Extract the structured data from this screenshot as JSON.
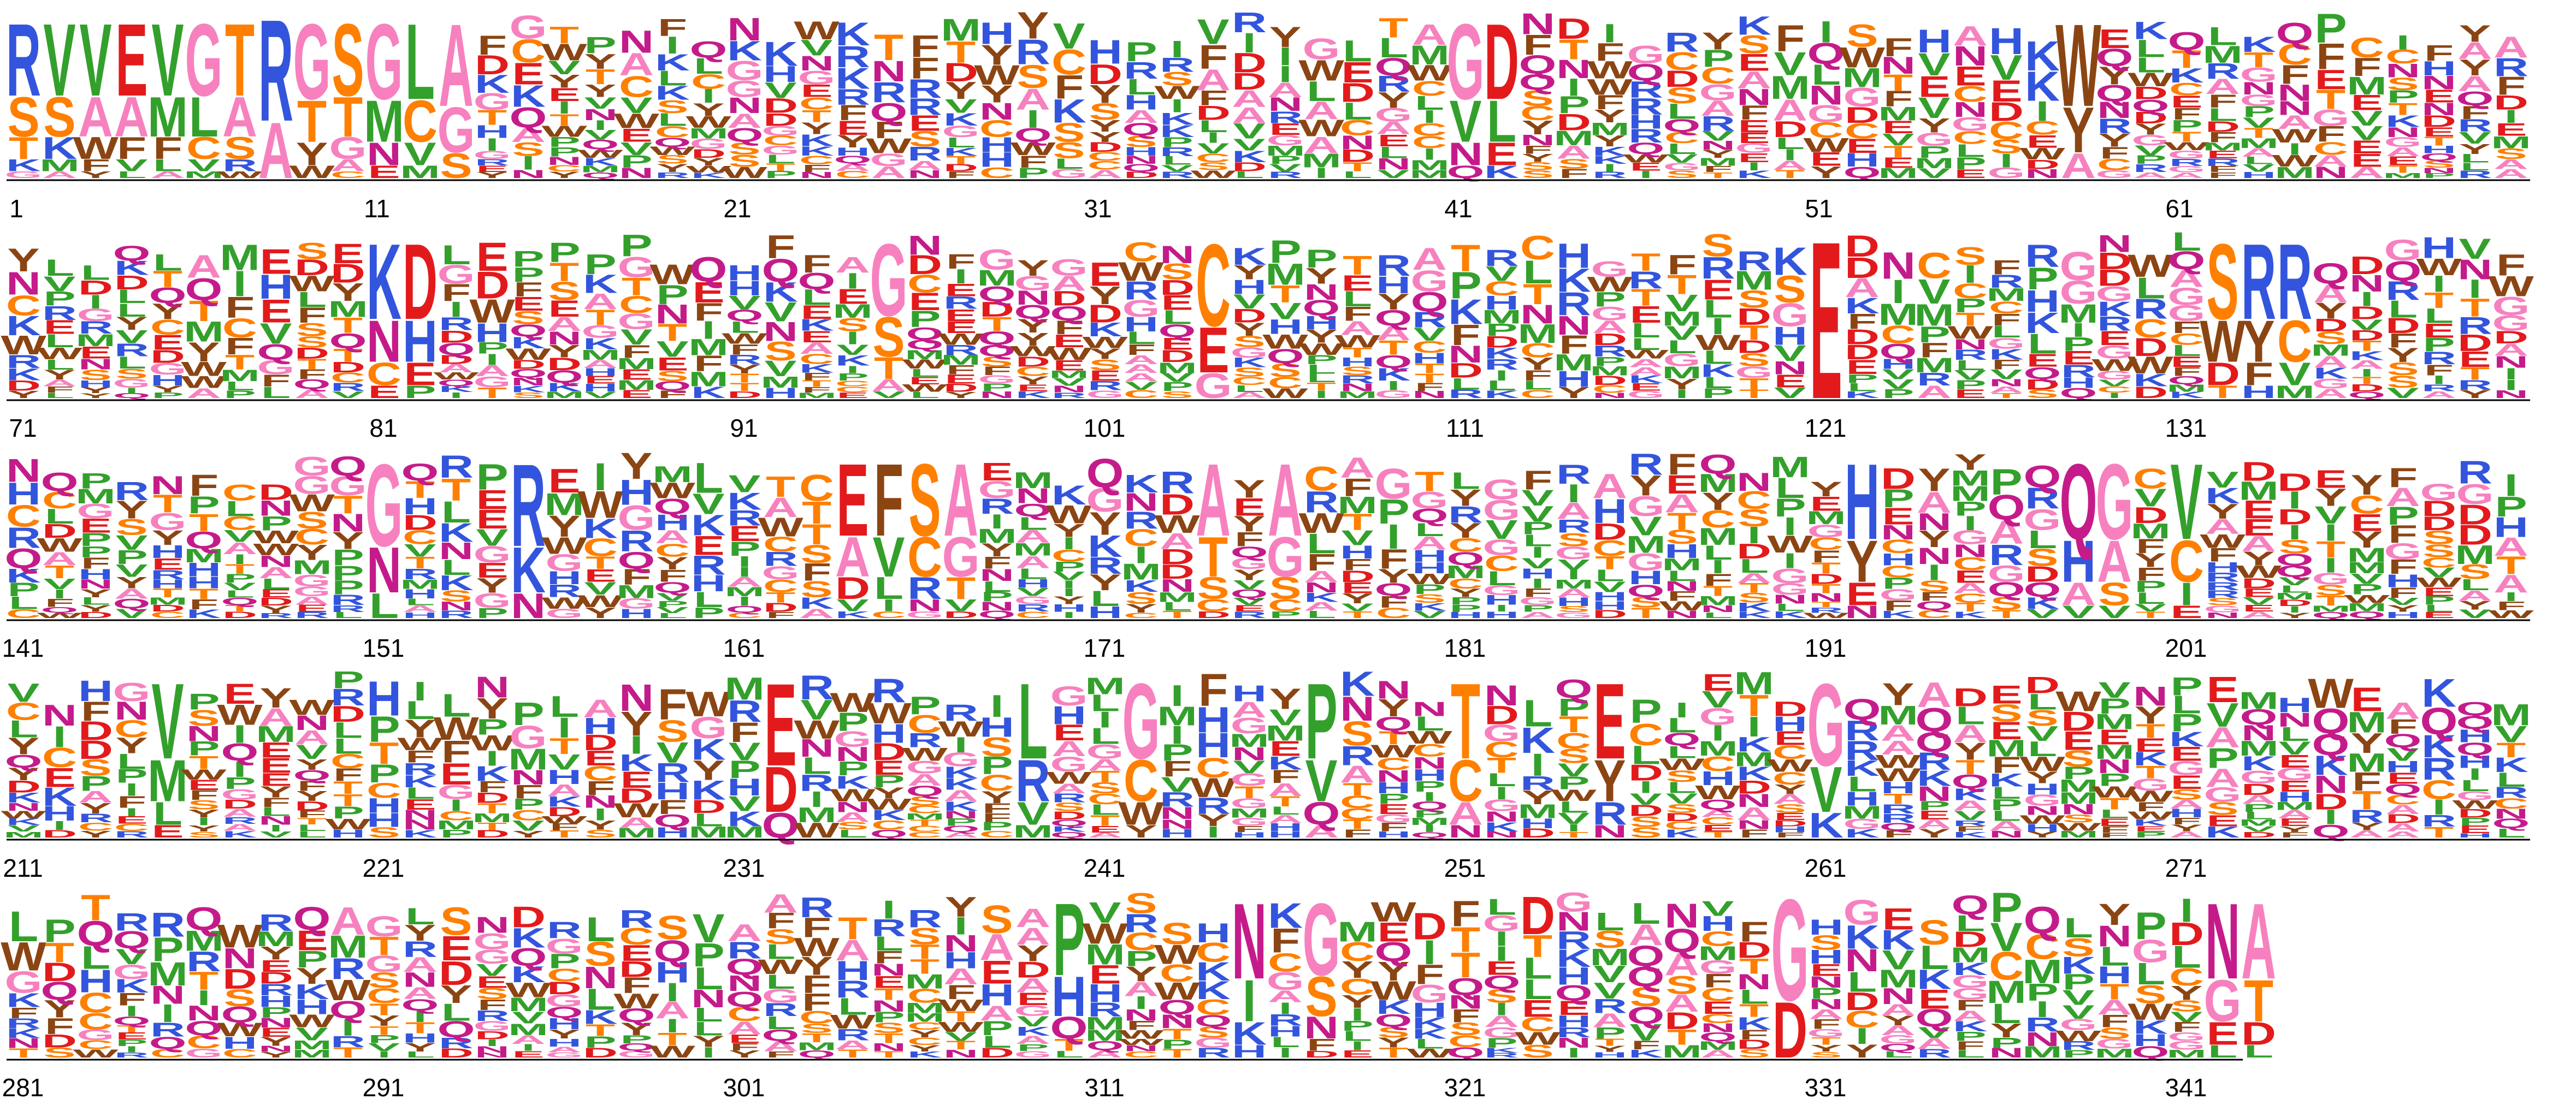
{
  "logo": {
    "total_positions": 343,
    "positions_per_row": 70,
    "rows": [
      {
        "tick_labels": [
          "1",
          "11",
          "21",
          "31",
          "41",
          "51",
          "61"
        ]
      },
      {
        "tick_labels": [
          "71",
          "81",
          "91",
          "101",
          "111",
          "121",
          "131"
        ]
      },
      {
        "tick_labels": [
          "141",
          "151",
          "161",
          "171",
          "181",
          "191",
          "201"
        ]
      },
      {
        "tick_labels": [
          "211",
          "221",
          "231",
          "241",
          "251",
          "261",
          "271"
        ]
      },
      {
        "tick_labels": [
          "281",
          "291",
          "301",
          "311",
          "321",
          "331",
          "341"
        ]
      }
    ],
    "residue_colors": {
      "A": "#f781bf",
      "G": "#f781bf",
      "C": "#ff7f00",
      "S": "#ff7f00",
      "T": "#ff7f00",
      "V": "#33a02c",
      "L": "#33a02c",
      "I": "#33a02c",
      "M": "#33a02c",
      "P": "#33a02c",
      "F": "#8b4513",
      "W": "#8b4513",
      "Y": "#8b4513",
      "D": "#e31a1c",
      "E": "#e31a1c",
      "N": "#c51b8a",
      "Q": "#c51b8a",
      "K": "#3355dd",
      "R": "#3355dd",
      "H": "#3355dd"
    },
    "columns": [
      {
        "pos": 1,
        "letters": [
          "R",
          "S",
          "T",
          "K",
          "G"
        ]
      },
      {
        "pos": 2,
        "letters": [
          "V",
          "S",
          "K",
          "M",
          "A"
        ]
      },
      {
        "pos": 3,
        "letters": [
          "V",
          "A",
          "W",
          "F",
          "Y"
        ]
      },
      {
        "pos": 4,
        "letters": [
          "E",
          "A",
          "F",
          "V",
          "L"
        ]
      },
      {
        "pos": 5,
        "letters": [
          "V",
          "M",
          "F",
          "L",
          "A"
        ]
      },
      {
        "pos": 6,
        "letters": [
          "G",
          "L",
          "C",
          "V",
          "M"
        ]
      },
      {
        "pos": 7,
        "letters": [
          "T",
          "A",
          "S",
          "R",
          "W"
        ]
      },
      {
        "pos": 8,
        "letters": [
          "R",
          "A"
        ]
      },
      {
        "pos": 9,
        "letters": [
          "G",
          "T",
          "Y",
          "W"
        ]
      },
      {
        "pos": 10,
        "letters": [
          "S",
          "T",
          "G",
          "A",
          "C"
        ]
      },
      {
        "pos": 11,
        "letters": [
          "G",
          "M",
          "N",
          "E"
        ]
      },
      {
        "pos": 12,
        "letters": [
          "L",
          "C",
          "V",
          "M"
        ]
      },
      {
        "pos": 13,
        "letters": [
          "A",
          "G",
          "S"
        ]
      },
      {
        "pos": 41,
        "letters": [
          "G",
          "V",
          "N",
          "Q"
        ]
      },
      {
        "pos": 42,
        "letters": [
          "D",
          "L",
          "E",
          "K"
        ]
      },
      {
        "pos": 58,
        "letters": [
          "W",
          "Y",
          "A"
        ]
      },
      {
        "pos": 81,
        "letters": [
          "K",
          "N",
          "C",
          "E"
        ]
      },
      {
        "pos": 82,
        "letters": [
          "D",
          "H",
          "E",
          "P"
        ]
      },
      {
        "pos": 95,
        "letters": [
          "G",
          "S",
          "T",
          "A",
          "V"
        ]
      },
      {
        "pos": 104,
        "letters": [
          "C",
          "E",
          "G"
        ]
      },
      {
        "pos": 121,
        "letters": [
          "E"
        ]
      },
      {
        "pos": 132,
        "letters": [
          "S",
          "W",
          "D",
          "T"
        ]
      },
      {
        "pos": 133,
        "letters": [
          "R",
          "Y",
          "F",
          "H"
        ]
      },
      {
        "pos": 134,
        "letters": [
          "R",
          "C",
          "V",
          "M"
        ]
      },
      {
        "pos": 151,
        "letters": [
          "G",
          "N",
          "L"
        ]
      },
      {
        "pos": 155,
        "letters": [
          "R",
          "K",
          "N"
        ]
      },
      {
        "pos": 164,
        "letters": [
          "E",
          "A",
          "D",
          "V",
          "K"
        ]
      },
      {
        "pos": 165,
        "letters": [
          "F",
          "V",
          "L",
          "I",
          "C"
        ]
      },
      {
        "pos": 166,
        "letters": [
          "S",
          "C",
          "R",
          "N",
          "G"
        ]
      },
      {
        "pos": 167,
        "letters": [
          "A",
          "G",
          "T",
          "V",
          "D"
        ]
      },
      {
        "pos": 174,
        "letters": [
          "A",
          "T",
          "S",
          "C",
          "D"
        ]
      },
      {
        "pos": 176,
        "letters": [
          "A",
          "G",
          "S",
          "C",
          "P"
        ]
      },
      {
        "pos": 192,
        "letters": [
          "H",
          "Y",
          "E",
          "N"
        ]
      },
      {
        "pos": 198,
        "letters": [
          "Q",
          "H",
          "A",
          "V"
        ]
      },
      {
        "pos": 199,
        "letters": [
          "G",
          "A",
          "S",
          "V"
        ]
      },
      {
        "pos": 201,
        "letters": [
          "V",
          "C",
          "I",
          "E"
        ]
      },
      {
        "pos": 215,
        "letters": [
          "V",
          "M",
          "L",
          "E"
        ]
      },
      {
        "pos": 232,
        "letters": [
          "E",
          "D",
          "Q"
        ]
      },
      {
        "pos": 239,
        "letters": [
          "L",
          "R",
          "V",
          "M"
        ]
      },
      {
        "pos": 242,
        "letters": [
          "G",
          "C",
          "W",
          "Y"
        ]
      },
      {
        "pos": 247,
        "letters": [
          "P",
          "V",
          "Q",
          "A"
        ]
      },
      {
        "pos": 251,
        "letters": [
          "T",
          "C",
          "A",
          "N"
        ]
      },
      {
        "pos": 255,
        "letters": [
          "E",
          "Y",
          "R",
          "N"
        ]
      },
      {
        "pos": 261,
        "letters": [
          "G",
          "V",
          "K"
        ]
      },
      {
        "pos": 310,
        "letters": [
          "P",
          "H",
          "Q",
          "T",
          "L"
        ]
      },
      {
        "pos": 315,
        "letters": [
          "N",
          "I",
          "K",
          "H"
        ]
      },
      {
        "pos": 317,
        "letters": [
          "G",
          "S",
          "N",
          "F",
          "D"
        ]
      },
      {
        "pos": 330,
        "letters": [
          "G",
          "D"
        ]
      },
      {
        "pos": 342,
        "letters": [
          "N",
          "G",
          "E",
          "L"
        ]
      },
      {
        "pos": 343,
        "letters": [
          "A",
          "T",
          "D",
          "L"
        ]
      }
    ]
  }
}
